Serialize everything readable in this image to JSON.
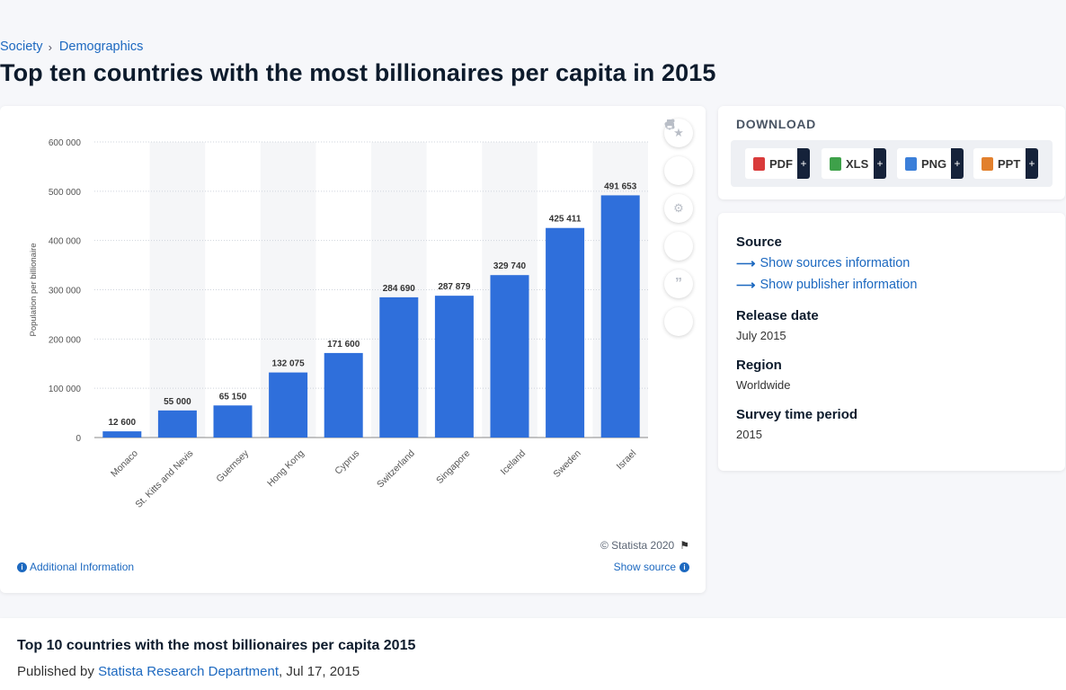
{
  "breadcrumb": {
    "parent": "Society",
    "current": "Demographics"
  },
  "page_title": "Top ten countries with the most billionaires per capita in 2015",
  "chart_data": {
    "type": "bar",
    "categories": [
      "Monaco",
      "St. Kitts and Nevis",
      "Guernsey",
      "Hong Kong",
      "Cyprus",
      "Switzerland",
      "Singapore",
      "Iceland",
      "Sweden",
      "Israel"
    ],
    "values": [
      12600,
      55000,
      65150,
      132075,
      171600,
      284690,
      287879,
      329740,
      425411,
      491653
    ],
    "value_labels": [
      "12 600",
      "55 000",
      "65 150",
      "132 075",
      "171 600",
      "284 690",
      "287 879",
      "329 740",
      "425 411",
      "491 653"
    ],
    "ylabel": "Population per billionaire",
    "xlabel": "",
    "ylim": [
      0,
      600000
    ],
    "yticks": [
      "0",
      "100 000",
      "200 000",
      "300 000",
      "400 000",
      "500 000",
      "600 000"
    ],
    "bar_color": "#2f6fdb",
    "grid": true
  },
  "chart_footer": {
    "copyright": "© Statista 2020",
    "additional_info": "Additional Information",
    "show_source": "Show source"
  },
  "tools": [
    "star-icon",
    "bell-icon",
    "gear-icon",
    "share-icon",
    "quote-icon",
    "print-icon"
  ],
  "download": {
    "title": "DOWNLOAD",
    "buttons": [
      {
        "label": "PDF",
        "color": "#d93b3b"
      },
      {
        "label": "XLS",
        "color": "#3ea14a"
      },
      {
        "label": "PNG",
        "color": "#3b7fd9"
      },
      {
        "label": "PPT",
        "color": "#e2802d"
      }
    ],
    "plus": "+"
  },
  "meta": {
    "source_heading": "Source",
    "show_sources": "Show sources information",
    "show_publisher": "Show publisher information",
    "release_heading": "Release date",
    "release_value": "July 2015",
    "region_heading": "Region",
    "region_value": "Worldwide",
    "survey_heading": "Survey time period",
    "survey_value": "2015"
  },
  "publication": {
    "title": "Top 10 countries with the most billionaires per capita 2015",
    "published_by_prefix": "Published by",
    "publisher": "Statista Research Department",
    "date_suffix": ", Jul 17, 2015"
  }
}
